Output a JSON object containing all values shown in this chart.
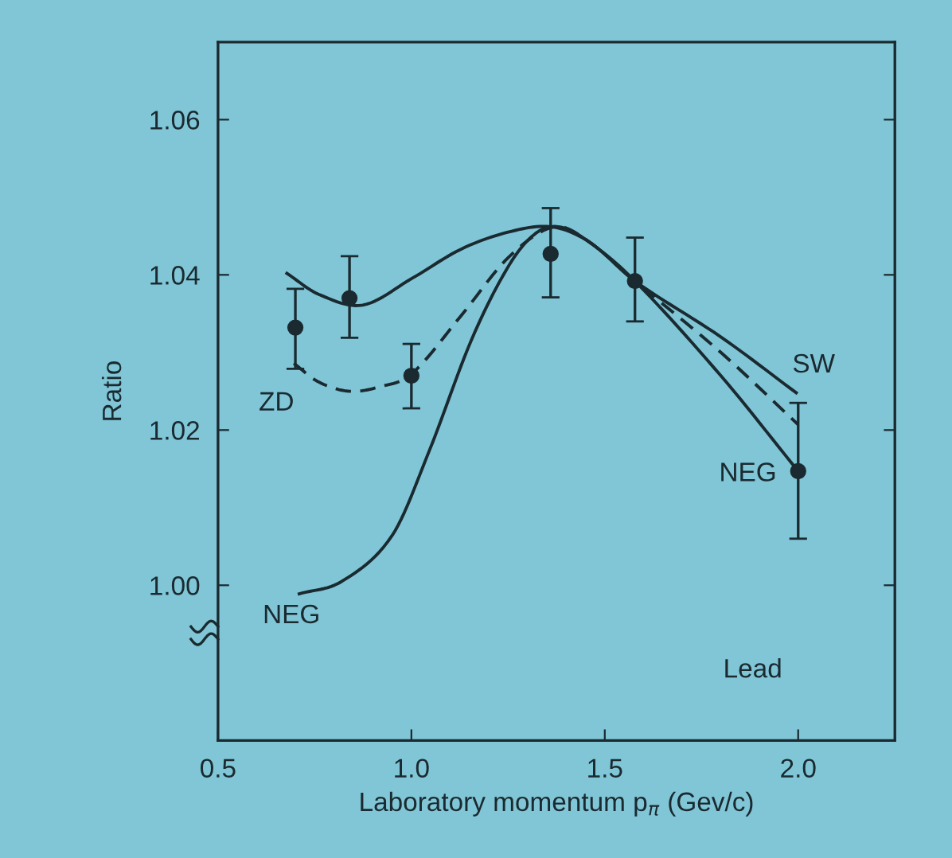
{
  "chart_data": {
    "type": "line",
    "xlabel": "Laboratory momentum p$_{π}$ (Gev/c)",
    "ylabel": "Ratio",
    "xlim": [
      0.5,
      2.25
    ],
    "ylim": [
      0.98,
      1.07
    ],
    "xticks": [
      {
        "value": 0.5,
        "label": "0.5"
      },
      {
        "value": 1.0,
        "label": "1.0"
      },
      {
        "value": 1.5,
        "label": "1.5"
      },
      {
        "value": 2.0,
        "label": "2.0"
      }
    ],
    "yticks": [
      {
        "value": 1.0,
        "label": "1.00"
      },
      {
        "value": 1.02,
        "label": "1.02"
      },
      {
        "value": 1.04,
        "label": "1.04"
      },
      {
        "value": 1.06,
        "label": "1.06"
      }
    ],
    "grid": false,
    "series": [
      {
        "name": "SW",
        "color": "#1a2a30",
        "line_style": "solid",
        "marker": "none",
        "x": [
          0.678,
          0.76,
          0.874,
          1.0,
          1.128,
          1.25,
          1.36,
          1.458,
          1.578,
          1.8,
          1.995
        ],
        "values": [
          1.0402,
          1.0375,
          1.0361,
          1.0395,
          1.0433,
          1.0455,
          1.0462,
          1.0443,
          1.0392,
          1.032,
          1.0248
        ]
      },
      {
        "name": "ZD",
        "color": "#1a2a30",
        "line_style": "dashed",
        "marker": "none",
        "x": [
          0.696,
          0.76,
          0.84,
          0.92,
          1.0,
          1.128,
          1.252,
          1.37,
          1.458,
          1.578,
          1.8,
          2.0
        ],
        "values": [
          1.0286,
          1.0262,
          1.025,
          1.0256,
          1.0272,
          1.0347,
          1.0423,
          1.0462,
          1.0443,
          1.0392,
          1.03,
          1.0207
        ]
      },
      {
        "name": "NEG",
        "color": "#1a2a30",
        "line_style": "solid",
        "marker": "none",
        "x": [
          0.71,
          0.82,
          0.95,
          1.046,
          1.156,
          1.252,
          1.32,
          1.38,
          1.458,
          1.578,
          1.8,
          2.0
        ],
        "values": [
          0.9989,
          1.0005,
          1.0064,
          1.0173,
          1.0317,
          1.0412,
          1.0453,
          1.0462,
          1.0443,
          1.0392,
          1.027,
          1.0147
        ]
      },
      {
        "type": "scatter",
        "color": "#1a2a30",
        "marker": "circle",
        "x": [
          0.7,
          0.84,
          1.0,
          1.36,
          1.578,
          2.0
        ],
        "values": [
          1.0332,
          1.037,
          1.027,
          1.0427,
          1.0392,
          1.0147
        ],
        "errors": [
          [
            1.0279,
            1.0382
          ],
          [
            1.0319,
            1.0424
          ],
          [
            1.0228,
            1.0311
          ],
          [
            1.0371,
            1.0486
          ],
          [
            1.034,
            1.0448
          ],
          [
            1.006,
            1.0235
          ]
        ]
      }
    ],
    "annotations": [
      "Lead"
    ]
  }
}
